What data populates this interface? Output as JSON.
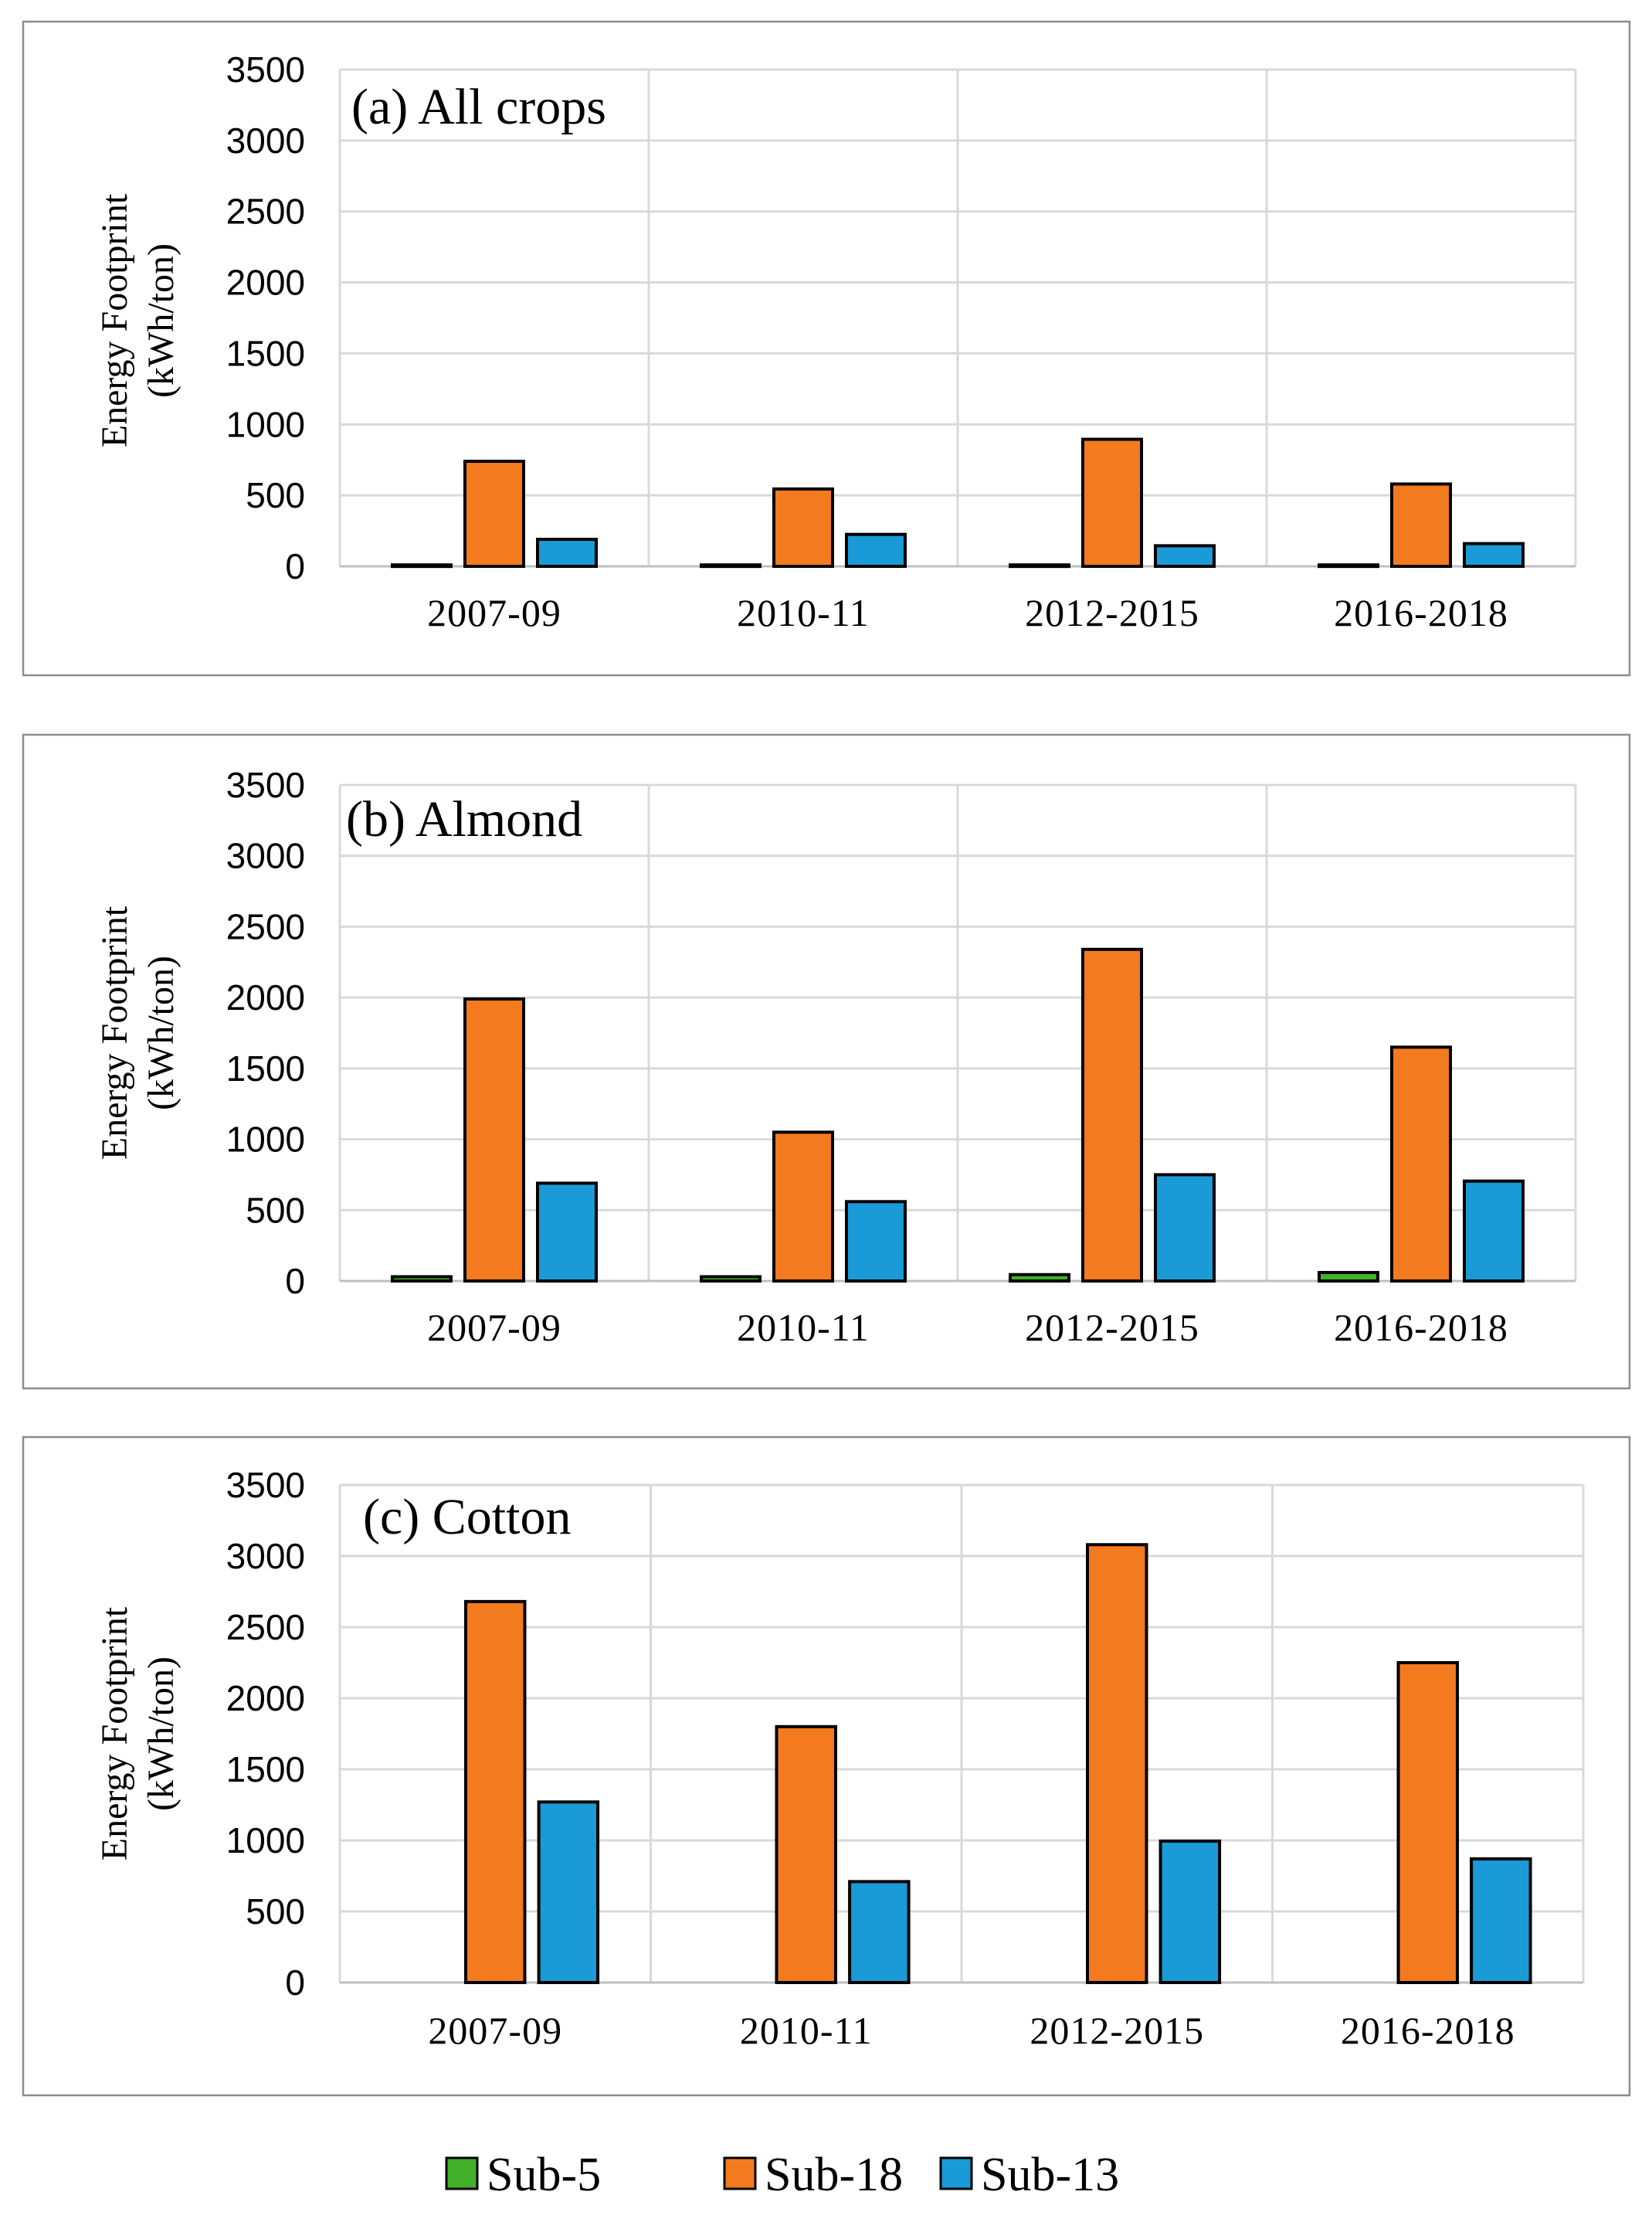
{
  "chart_data": [
    {
      "type": "bar",
      "title": "(a) All crops",
      "ylabel": "Energy Footprint (kWh/ton)",
      "ylabel_lines": [
        "Energy Footprint",
        "(kWh/ton)"
      ],
      "ylim": [
        0,
        3500
      ],
      "yticks": [
        0,
        500,
        1000,
        1500,
        2000,
        2500,
        3000,
        3500
      ],
      "categories": [
        "2007-09",
        "2010-11",
        "2012-2015",
        "2016-2018"
      ],
      "series": [
        {
          "name": "Sub-5",
          "values": [
            10,
            10,
            10,
            10
          ]
        },
        {
          "name": "Sub-18",
          "values": [
            740,
            545,
            895,
            580
          ]
        },
        {
          "name": "Sub-13",
          "values": [
            190,
            225,
            145,
            160
          ]
        }
      ]
    },
    {
      "type": "bar",
      "title": "(b) Almond",
      "ylabel": "Energy Footprint (kWh/ton)",
      "ylabel_lines": [
        "Energy Footprint",
        "(kWh/ton)"
      ],
      "ylim": [
        0,
        3500
      ],
      "yticks": [
        0,
        500,
        1000,
        1500,
        2000,
        2500,
        3000,
        3500
      ],
      "categories": [
        "2007-09",
        "2010-11",
        "2012-2015",
        "2016-2018"
      ],
      "series": [
        {
          "name": "Sub-5",
          "values": [
            30,
            30,
            45,
            60
          ]
        },
        {
          "name": "Sub-18",
          "values": [
            1990,
            1050,
            2340,
            1650
          ]
        },
        {
          "name": "Sub-13",
          "values": [
            690,
            560,
            750,
            705
          ]
        }
      ]
    },
    {
      "type": "bar",
      "title": "(c) Cotton",
      "ylabel": "Energy Footprint (kWh/ton)",
      "ylabel_lines": [
        "Energy Footprint",
        "(kWh/ton)"
      ],
      "ylim": [
        0,
        3500
      ],
      "yticks": [
        0,
        500,
        1000,
        1500,
        2000,
        2500,
        3000,
        3500
      ],
      "categories": [
        "2007-09",
        "2010-11",
        "2012-2015",
        "2016-2018"
      ],
      "series": [
        {
          "name": "Sub-5",
          "values": [
            0,
            0,
            0,
            0
          ]
        },
        {
          "name": "Sub-18",
          "values": [
            2680,
            1800,
            3080,
            2250
          ]
        },
        {
          "name": "Sub-13",
          "values": [
            1270,
            710,
            995,
            870
          ]
        }
      ]
    }
  ],
  "legend": {
    "items": [
      {
        "name": "Sub-5",
        "color": "#43b02a"
      },
      {
        "name": "Sub-18",
        "color": "#f47a20"
      },
      {
        "name": "Sub-13",
        "color": "#1a9ad6"
      }
    ]
  },
  "colors": {
    "Sub-5": "#43b02a",
    "Sub-18": "#f47a20",
    "Sub-13": "#1a9ad6"
  }
}
